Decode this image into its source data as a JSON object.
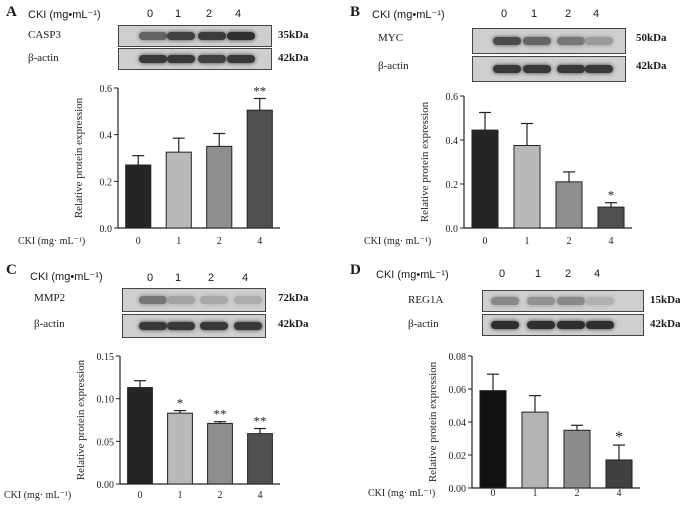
{
  "panels": [
    {
      "label": "A",
      "conc_header": "CKI (mg•mL⁻¹)",
      "lanes": [
        "0",
        "1",
        "2",
        "4"
      ],
      "blots": [
        {
          "protein": "CASP3",
          "kda": "35kDa",
          "intensity": [
            0.55,
            0.75,
            0.78,
            0.85
          ]
        },
        {
          "protein": "β-actin",
          "kda": "42kDa",
          "intensity": [
            0.8,
            0.8,
            0.75,
            0.8
          ]
        }
      ],
      "colors": [
        "#252525",
        "#b9b9b9",
        "#8e8e8e",
        "#505050"
      ]
    },
    {
      "label": "B",
      "conc_header": "CKI (mg•mL⁻¹)",
      "lanes": [
        "0",
        "1",
        "2",
        "4"
      ],
      "blots": [
        {
          "protein": "MYC",
          "kda": "50kDa",
          "intensity": [
            0.7,
            0.55,
            0.45,
            0.25
          ]
        },
        {
          "protein": "β-actin",
          "kda": "42kDa",
          "intensity": [
            0.8,
            0.8,
            0.8,
            0.8
          ]
        }
      ],
      "colors": [
        "#252525",
        "#b9b9b9",
        "#8e8e8e",
        "#505050"
      ]
    },
    {
      "label": "C",
      "conc_header": "CKI (mg•mL⁻¹)",
      "lanes": [
        "0",
        "1",
        "2",
        "4"
      ],
      "blots": [
        {
          "protein": "MMP2",
          "kda": "72kDa",
          "intensity": [
            0.45,
            0.2,
            0.18,
            0.15
          ]
        },
        {
          "protein": "β-actin",
          "kda": "42kDa",
          "intensity": [
            0.8,
            0.8,
            0.8,
            0.8
          ]
        }
      ],
      "colors": [
        "#252525",
        "#b9b9b9",
        "#8e8e8e",
        "#505050"
      ]
    },
    {
      "label": "D",
      "conc_header": "CKI (mg•mL⁻¹)",
      "lanes": [
        "0",
        "1",
        "2",
        "4"
      ],
      "blots": [
        {
          "protein": "REG1A",
          "kda": "15kDa",
          "intensity": [
            0.35,
            0.3,
            0.35,
            0.12
          ]
        },
        {
          "protein": "β-actin",
          "kda": "42kDa",
          "intensity": [
            0.85,
            0.85,
            0.85,
            0.85
          ]
        }
      ],
      "colors": [
        "#111111",
        "#b3b3b3",
        "#8c8c8c",
        "#404040"
      ]
    }
  ],
  "chart_data": [
    {
      "type": "bar",
      "panel": "A",
      "categories": [
        "0",
        "1",
        "2",
        "4"
      ],
      "values": [
        0.27,
        0.325,
        0.35,
        0.505
      ],
      "errors": [
        0.04,
        0.06,
        0.055,
        0.05
      ],
      "significance": [
        "",
        "",
        "",
        "**"
      ],
      "ylabel": "Relative protein expression",
      "xlabel": "CKI (mg· mL⁻¹)",
      "ylim": [
        0,
        0.6
      ],
      "yticks": [
        "0.0",
        "0.2",
        "0.4",
        "0.6"
      ]
    },
    {
      "type": "bar",
      "panel": "B",
      "categories": [
        "0",
        "1",
        "2",
        "4"
      ],
      "values": [
        0.445,
        0.375,
        0.21,
        0.095
      ],
      "errors": [
        0.08,
        0.1,
        0.045,
        0.02
      ],
      "significance": [
        "",
        "",
        "",
        "*"
      ],
      "ylabel": "Relative protein expression",
      "xlabel": "CKI (mg· mL⁻¹)",
      "ylim": [
        0,
        0.6
      ],
      "yticks": [
        "0.0",
        "0.2",
        "0.4",
        "0.6"
      ]
    },
    {
      "type": "bar",
      "panel": "C",
      "categories": [
        "0",
        "1",
        "2",
        "4"
      ],
      "values": [
        0.113,
        0.083,
        0.071,
        0.059
      ],
      "errors": [
        0.008,
        0.003,
        0.002,
        0.006
      ],
      "significance": [
        "",
        "*",
        "**",
        "**"
      ],
      "ylabel": "Relative protein expression",
      "xlabel": "CKI (mg· mL⁻¹)",
      "ylim": [
        0,
        0.15
      ],
      "yticks": [
        "0.00",
        "0.05",
        "0.10",
        "0.15"
      ]
    },
    {
      "type": "bar",
      "panel": "D",
      "categories": [
        "0",
        "1",
        "2",
        "4"
      ],
      "values": [
        0.059,
        0.046,
        0.035,
        0.017
      ],
      "errors": [
        0.01,
        0.01,
        0.003,
        0.009
      ],
      "significance": [
        "",
        "",
        "",
        "*"
      ],
      "ylabel": "Relative protein expression",
      "xlabel": "CKI (mg· mL⁻¹)",
      "ylim": [
        0,
        0.08
      ],
      "yticks": [
        "0.00",
        "0.02",
        "0.04",
        "0.06",
        "0.08"
      ]
    }
  ]
}
